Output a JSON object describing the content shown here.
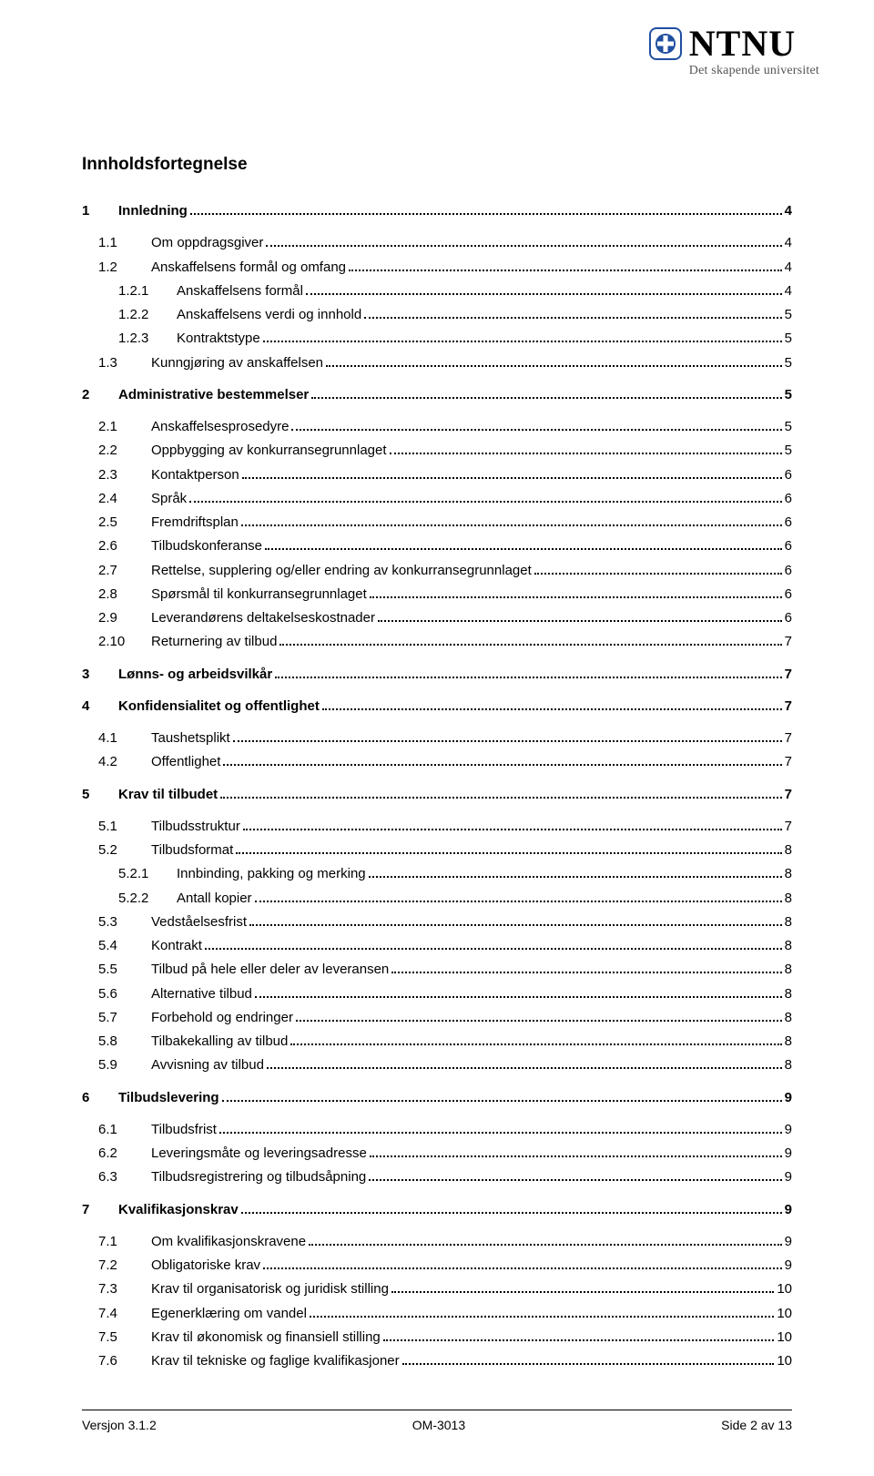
{
  "logo": {
    "main": "NTNU",
    "sub": "Det skapende universitet"
  },
  "toc_heading": "Innholdsfortegnelse",
  "entries": [
    {
      "level": 1,
      "num": "1",
      "label": "Innledning",
      "page": "4",
      "first": true
    },
    {
      "level": 2,
      "num": "1.1",
      "label": "Om oppdragsgiver",
      "page": "4",
      "gap": true
    },
    {
      "level": 2,
      "num": "1.2",
      "label": "Anskaffelsens formål og omfang",
      "page": "4"
    },
    {
      "level": 3,
      "num": "1.2.1",
      "label": "Anskaffelsens formål",
      "page": "4"
    },
    {
      "level": 3,
      "num": "1.2.2",
      "label": "Anskaffelsens verdi og innhold",
      "page": "5"
    },
    {
      "level": 3,
      "num": "1.2.3",
      "label": "Kontraktstype",
      "page": "5"
    },
    {
      "level": 2,
      "num": "1.3",
      "label": "Kunngjøring av anskaffelsen",
      "page": "5"
    },
    {
      "level": 1,
      "num": "2",
      "label": "Administrative bestemmelser",
      "page": "5"
    },
    {
      "level": 2,
      "num": "2.1",
      "label": "Anskaffelsesprosedyre",
      "page": "5",
      "gap": true
    },
    {
      "level": 2,
      "num": "2.2",
      "label": "Oppbygging av konkurransegrunnlaget",
      "page": "5"
    },
    {
      "level": 2,
      "num": "2.3",
      "label": "Kontaktperson",
      "page": "6"
    },
    {
      "level": 2,
      "num": "2.4",
      "label": "Språk",
      "page": "6"
    },
    {
      "level": 2,
      "num": "2.5",
      "label": "Fremdriftsplan",
      "page": "6"
    },
    {
      "level": 2,
      "num": "2.6",
      "label": "Tilbudskonferanse",
      "page": "6"
    },
    {
      "level": 2,
      "num": "2.7",
      "label": "Rettelse, supplering og/eller endring av konkurransegrunnlaget",
      "page": "6"
    },
    {
      "level": 2,
      "num": "2.8",
      "label": "Spørsmål til konkurransegrunnlaget",
      "page": "6"
    },
    {
      "level": 2,
      "num": "2.9",
      "label": "Leverandørens deltakelseskostnader",
      "page": "6"
    },
    {
      "level": 2,
      "num": "2.10",
      "label": "Returnering av tilbud",
      "page": "7"
    },
    {
      "level": 1,
      "num": "3",
      "label": "Lønns- og arbeidsvilkår",
      "page": "7"
    },
    {
      "level": 1,
      "num": "4",
      "label": "Konfidensialitet og offentlighet",
      "page": "7"
    },
    {
      "level": 2,
      "num": "4.1",
      "label": "Taushetsplikt",
      "page": "7",
      "gap": true
    },
    {
      "level": 2,
      "num": "4.2",
      "label": "Offentlighet",
      "page": "7"
    },
    {
      "level": 1,
      "num": "5",
      "label": "Krav til tilbudet",
      "page": "7"
    },
    {
      "level": 2,
      "num": "5.1",
      "label": "Tilbudsstruktur",
      "page": "7",
      "gap": true
    },
    {
      "level": 2,
      "num": "5.2",
      "label": "Tilbudsformat",
      "page": "8"
    },
    {
      "level": 3,
      "num": "5.2.1",
      "label": "Innbinding, pakking og merking",
      "page": "8"
    },
    {
      "level": 3,
      "num": "5.2.2",
      "label": "Antall kopier",
      "page": "8"
    },
    {
      "level": 2,
      "num": "5.3",
      "label": "Vedståelsesfrist",
      "page": "8"
    },
    {
      "level": 2,
      "num": "5.4",
      "label": "Kontrakt",
      "page": "8"
    },
    {
      "level": 2,
      "num": "5.5",
      "label": "Tilbud på hele eller deler av leveransen",
      "page": "8"
    },
    {
      "level": 2,
      "num": "5.6",
      "label": "Alternative tilbud",
      "page": "8"
    },
    {
      "level": 2,
      "num": "5.7",
      "label": "Forbehold og endringer",
      "page": "8"
    },
    {
      "level": 2,
      "num": "5.8",
      "label": "Tilbakekalling av tilbud",
      "page": "8"
    },
    {
      "level": 2,
      "num": "5.9",
      "label": "Avvisning av tilbud",
      "page": "8"
    },
    {
      "level": 1,
      "num": "6",
      "label": "Tilbudslevering",
      "page": "9"
    },
    {
      "level": 2,
      "num": "6.1",
      "label": "Tilbudsfrist",
      "page": "9",
      "gap": true
    },
    {
      "level": 2,
      "num": "6.2",
      "label": "Leveringsmåte og leveringsadresse",
      "page": "9"
    },
    {
      "level": 2,
      "num": "6.3",
      "label": "Tilbudsregistrering og tilbudsåpning",
      "page": "9"
    },
    {
      "level": 1,
      "num": "7",
      "label": "Kvalifikasjonskrav",
      "page": "9"
    },
    {
      "level": 2,
      "num": "7.1",
      "label": "Om kvalifikasjonskravene",
      "page": "9",
      "gap": true
    },
    {
      "level": 2,
      "num": "7.2",
      "label": "Obligatoriske krav",
      "page": "9"
    },
    {
      "level": 2,
      "num": "7.3",
      "label": "Krav til organisatorisk og juridisk stilling",
      "page": "10"
    },
    {
      "level": 2,
      "num": "7.4",
      "label": "Egenerklæring om vandel",
      "page": "10"
    },
    {
      "level": 2,
      "num": "7.5",
      "label": "Krav til økonomisk og finansiell stilling",
      "page": "10"
    },
    {
      "level": 2,
      "num": "7.6",
      "label": "Krav til tekniske og faglige kvalifikasjoner",
      "page": "10"
    }
  ],
  "footer": {
    "left": "Versjon 3.1.2",
    "center": "OM-3013",
    "right": "Side 2 av 13"
  }
}
